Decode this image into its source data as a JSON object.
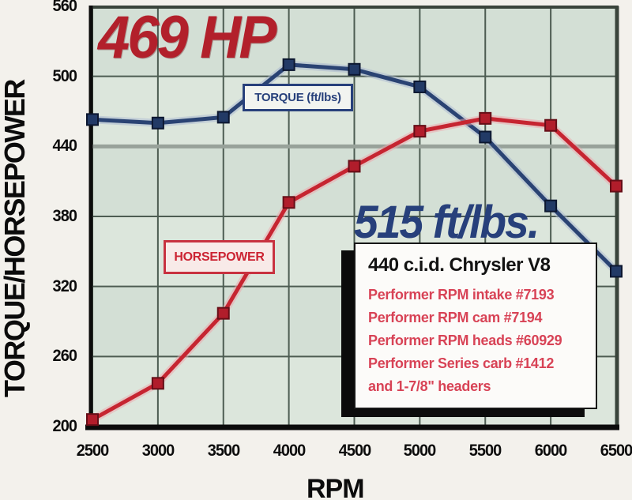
{
  "chart_data": {
    "type": "line",
    "x_label": "RPM",
    "y_label": "TORQUE/HORSEPOWER",
    "xlim": [
      2500,
      6500
    ],
    "ylim": [
      200,
      560
    ],
    "x_ticks": [
      2500,
      3000,
      3500,
      4000,
      4500,
      5000,
      5500,
      6000,
      6500
    ],
    "y_ticks": [
      560,
      500,
      440,
      380,
      320,
      260,
      200
    ],
    "grid": true,
    "x": [
      2500,
      3000,
      3500,
      4000,
      4500,
      5000,
      5500,
      6000,
      6500
    ],
    "series": [
      {
        "name": "TORQUE (ft/lbs)",
        "values": [
          463,
          460,
          465,
          510,
          506,
          491,
          448,
          389,
          333
        ],
        "color": "#2a4373",
        "halo_color": "#a8b6cf",
        "marker": "square",
        "marker_fill": "#223a66",
        "marker_stroke": "#0c1730"
      },
      {
        "name": "HORSEPOWER",
        "values": [
          206,
          237,
          297,
          392,
          423,
          453,
          464,
          458,
          406
        ],
        "color": "#c62531",
        "halo_color": "#eda6ab",
        "marker": "square",
        "marker_fill": "#b11d2b",
        "marker_stroke": "#660e17"
      }
    ],
    "band_colors": [
      "#d3dfd5",
      "#dce6dc"
    ],
    "grid_color": "#4d5c52",
    "grid_color_440": "#98a29a",
    "axis_color": "#0b0b0b",
    "border_color": "#39443b"
  },
  "annotations": {
    "hp_peak": "469 HP",
    "torque_peak": "515 ft/lbs."
  },
  "series_labels": {
    "torque": "TORQUE (ft/lbs)",
    "horsepower": "HORSEPOWER"
  },
  "info_box": {
    "title": "440 c.i.d. Chrysler V8",
    "lines": [
      "Performer RPM intake #7193",
      "Performer RPM cam #7194",
      "Performer RPM heads #60929",
      "Performer Series carb #1412",
      "and 1-7/8\" headers"
    ]
  },
  "colors": {
    "hp_peak_text": "#b2202b",
    "torque_peak_text": "#27407b",
    "plot_bg": "#d6e2d8",
    "page_bg": "#f3f1ec",
    "info_text_red": "#d84356",
    "info_title_black": "#121212"
  }
}
